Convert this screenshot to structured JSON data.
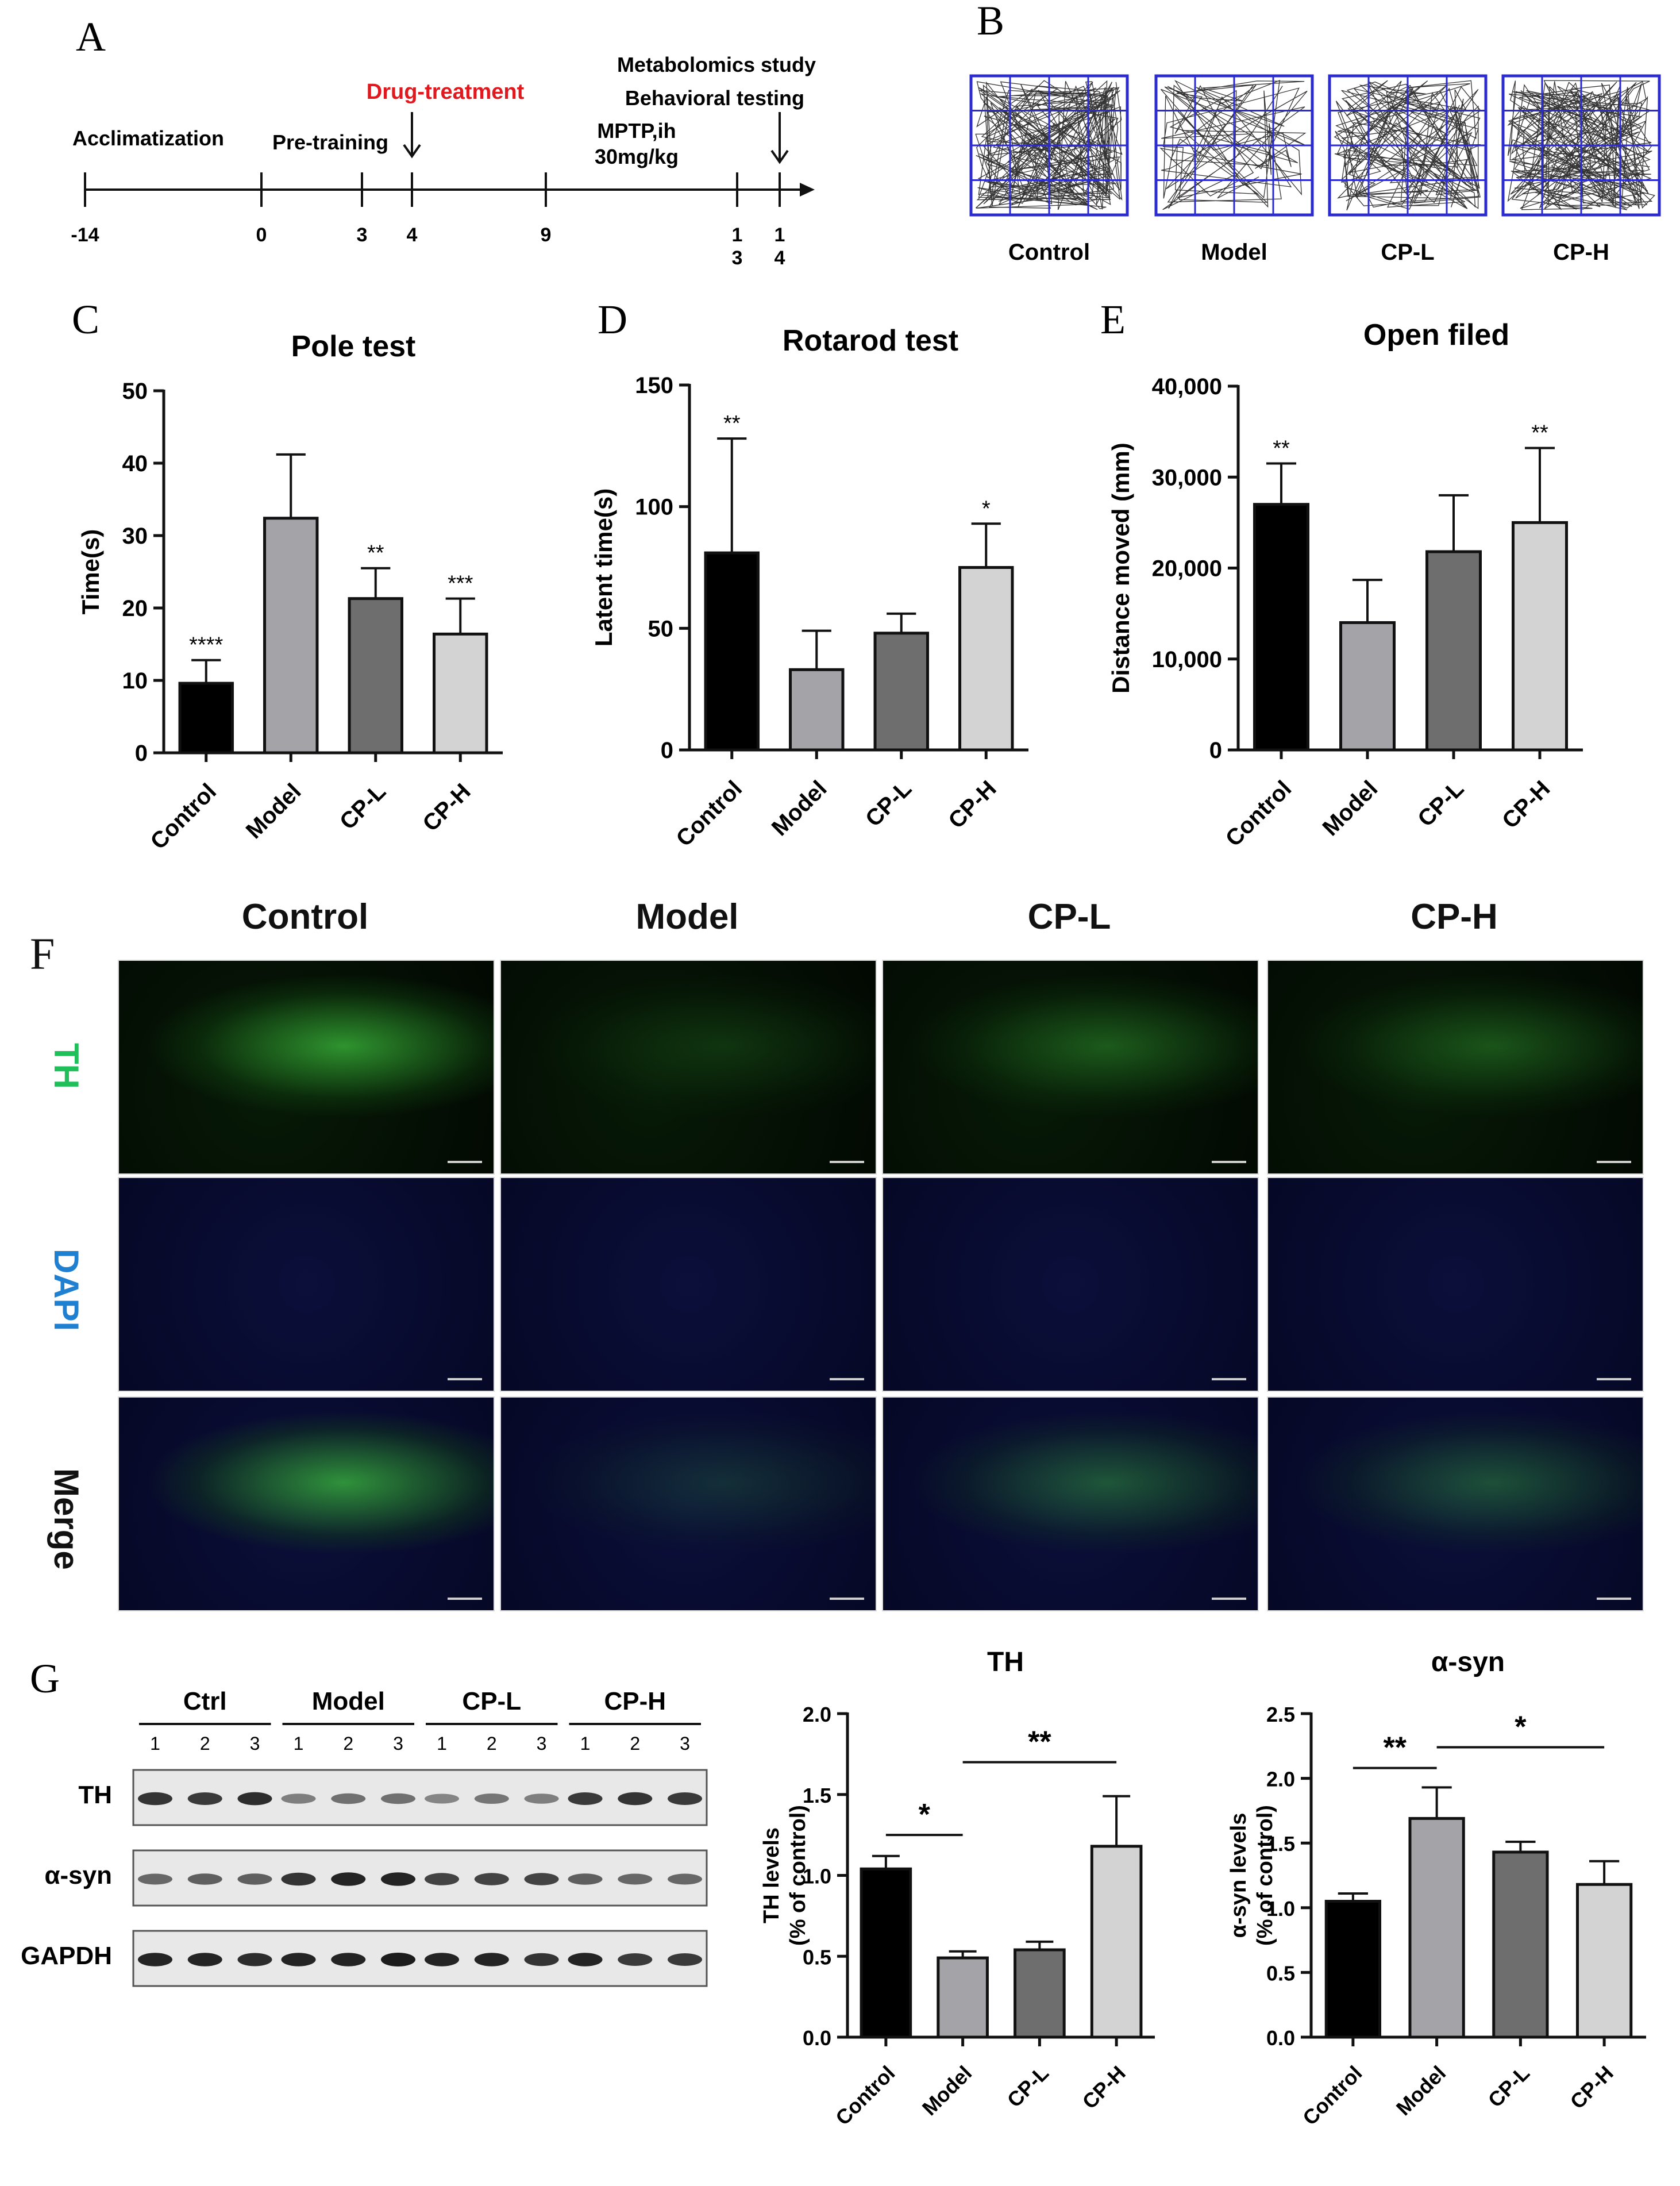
{
  "panel_letters": {
    "A": "A",
    "B": "B",
    "C": "C",
    "D": "D",
    "E": "E",
    "F": "F",
    "G": "G"
  },
  "timeline": {
    "phases": {
      "acclimatization": "Acclimatization",
      "pretraining": "Pre-training",
      "drug": "Drug-treatment",
      "mptp1": "MPTP,ih",
      "mptp2": "30mg/kg",
      "metab": "Metabolomics study",
      "behav": "Behavioral testing"
    },
    "ticks": [
      "-14",
      "0",
      "3",
      "4",
      "9",
      "1\n3",
      "1\n4"
    ],
    "accent": "#e0191f"
  },
  "maze": {
    "labels": [
      "Control",
      "Model",
      "CP-L",
      "CP-H"
    ],
    "grid_color": "#2b2bd0",
    "density": [
      1.0,
      0.25,
      0.7,
      0.9
    ]
  },
  "chart_data": [
    {
      "id": "pole",
      "type": "bar",
      "title": "Pole test",
      "ylabel": "Time(s)",
      "categories": [
        "Control",
        "Model",
        "CP-L",
        "CP-H"
      ],
      "values": [
        9.6,
        32.4,
        21.3,
        16.4
      ],
      "errors": [
        3.2,
        8.8,
        4.2,
        4.9
      ],
      "sig": [
        "****",
        "",
        "**",
        "***"
      ],
      "ylim": [
        0,
        50
      ],
      "yticks": [
        0,
        10,
        20,
        30,
        40,
        50
      ],
      "ytick_labels": [
        "0",
        "10",
        "20",
        "30",
        "40",
        "50"
      ],
      "colors": [
        "#000000",
        "#a3a3a8",
        "#6e6e6e",
        "#d3d3d3"
      ]
    },
    {
      "id": "rotarod",
      "type": "bar",
      "title": "Rotarod test",
      "ylabel": "Latent time(s)",
      "categories": [
        "Control",
        "Model",
        "CP-L",
        "CP-H"
      ],
      "values": [
        81,
        33,
        48,
        75
      ],
      "errors": [
        47,
        16,
        8,
        18
      ],
      "sig": [
        "**",
        "",
        "",
        "*"
      ],
      "ylim": [
        0,
        150
      ],
      "yticks": [
        0,
        50,
        100,
        150
      ],
      "ytick_labels": [
        "0",
        "50",
        "100",
        "150"
      ],
      "colors": [
        "#000000",
        "#a3a3a8",
        "#6e6e6e",
        "#d3d3d3"
      ]
    },
    {
      "id": "openfield",
      "type": "bar",
      "title": "Open filed",
      "ylabel": "Distance moved (mm)",
      "categories": [
        "Control",
        "Model",
        "CP-L",
        "CP-H"
      ],
      "values": [
        27000,
        14000,
        21800,
        25000
      ],
      "errors": [
        4500,
        4700,
        6200,
        8200
      ],
      "sig": [
        "**",
        "",
        "",
        "**"
      ],
      "ylim": [
        0,
        40000
      ],
      "yticks": [
        0,
        10000,
        20000,
        30000,
        40000
      ],
      "ytick_labels": [
        "0",
        "10,000",
        "20,000",
        "30,000",
        "40,000"
      ],
      "colors": [
        "#000000",
        "#a3a3a8",
        "#6e6e6e",
        "#d3d3d3"
      ]
    },
    {
      "id": "th",
      "type": "bar",
      "title": "TH",
      "ylabel": "TH levels\n(% of control)",
      "categories": [
        "Control",
        "Model",
        "CP-L",
        "CP-H"
      ],
      "values": [
        1.04,
        0.49,
        0.54,
        1.18
      ],
      "errors": [
        0.08,
        0.04,
        0.05,
        0.31
      ],
      "ylim": [
        0,
        2.0
      ],
      "yticks": [
        0,
        0.5,
        1.0,
        1.5,
        2.0
      ],
      "ytick_labels": [
        "0.0",
        "0.5",
        "1.0",
        "1.5",
        "2.0"
      ],
      "brackets": [
        {
          "from": 0,
          "to": 1,
          "y": 1.25,
          "label": "*"
        },
        {
          "from": 1,
          "to": 3,
          "y": 1.7,
          "label": "**"
        }
      ],
      "colors": [
        "#000000",
        "#a3a3a8",
        "#6e6e6e",
        "#d3d3d3"
      ]
    },
    {
      "id": "asyn",
      "type": "bar",
      "title": "α-syn",
      "ylabel": "α-syn levels\n(% of control)",
      "categories": [
        "Control",
        "Model",
        "CP-L",
        "CP-H"
      ],
      "values": [
        1.05,
        1.69,
        1.43,
        1.18
      ],
      "errors": [
        0.06,
        0.24,
        0.08,
        0.18
      ],
      "ylim": [
        0,
        2.5
      ],
      "yticks": [
        0,
        0.5,
        1.0,
        1.5,
        2.0,
        2.5
      ],
      "ytick_labels": [
        "0.0",
        "0.5",
        "1.0",
        "1.5",
        "2.0",
        "2.5"
      ],
      "brackets": [
        {
          "from": 0,
          "to": 1,
          "y": 2.08,
          "label": "**"
        },
        {
          "from": 1,
          "to": 3,
          "y": 2.24,
          "label": "*"
        }
      ],
      "colors": [
        "#000000",
        "#a3a3a8",
        "#6e6e6e",
        "#d3d3d3"
      ]
    }
  ],
  "micrographs": {
    "columns": [
      "Control",
      "Model",
      "CP-L",
      "CP-H"
    ],
    "rows": [
      "TH",
      "DAPI",
      "Merge"
    ],
    "row_colors": [
      "#1fbf5a",
      "#1f7fd0",
      "#111111"
    ],
    "th_intensity": [
      1.0,
      0.25,
      0.55,
      0.5
    ]
  },
  "western": {
    "groups": [
      "Ctrl",
      "Model",
      "CP-L",
      "CP-H"
    ],
    "lanes": [
      "1",
      "2",
      "3"
    ],
    "rows": [
      "TH",
      "α-syn",
      "GAPDH"
    ],
    "intensity": {
      "TH": [
        0.85,
        0.8,
        0.88,
        0.35,
        0.45,
        0.45,
        0.3,
        0.4,
        0.35,
        0.8,
        0.85,
        0.8
      ],
      "α-syn": [
        0.5,
        0.55,
        0.55,
        0.85,
        0.95,
        0.95,
        0.75,
        0.75,
        0.75,
        0.55,
        0.5,
        0.5
      ],
      "GAPDH": [
        0.95,
        0.95,
        0.9,
        0.95,
        0.95,
        1.0,
        0.95,
        0.95,
        0.85,
        0.95,
        0.8,
        0.8
      ]
    }
  }
}
